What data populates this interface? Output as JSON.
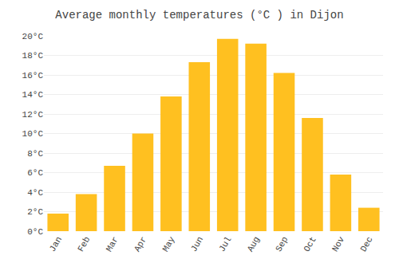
{
  "chart_data": {
    "type": "bar",
    "title": "Average monthly temperatures (°C ) in Dijon",
    "categories": [
      "Jan",
      "Feb",
      "Mar",
      "Apr",
      "May",
      "Jun",
      "Jul",
      "Aug",
      "Sep",
      "Oct",
      "Nov",
      "Dec"
    ],
    "values": [
      1.8,
      3.8,
      6.7,
      10.0,
      13.8,
      17.3,
      19.7,
      19.2,
      16.2,
      11.6,
      5.8,
      2.4
    ],
    "color": "#FFC020",
    "ylim": [
      0,
      20
    ],
    "yticks": [
      {
        "value": 0,
        "label": "0°C"
      },
      {
        "value": 2,
        "label": "2°C"
      },
      {
        "value": 4,
        "label": "4°C"
      },
      {
        "value": 6,
        "label": "6°C"
      },
      {
        "value": 8,
        "label": "8°C"
      },
      {
        "value": 10,
        "label": "10°C"
      },
      {
        "value": 12,
        "label": "12°C"
      },
      {
        "value": 14,
        "label": "14°C"
      },
      {
        "value": 16,
        "label": "16°C"
      },
      {
        "value": 18,
        "label": "18°C"
      },
      {
        "value": 20,
        "label": "20°C"
      }
    ],
    "grid": true
  }
}
